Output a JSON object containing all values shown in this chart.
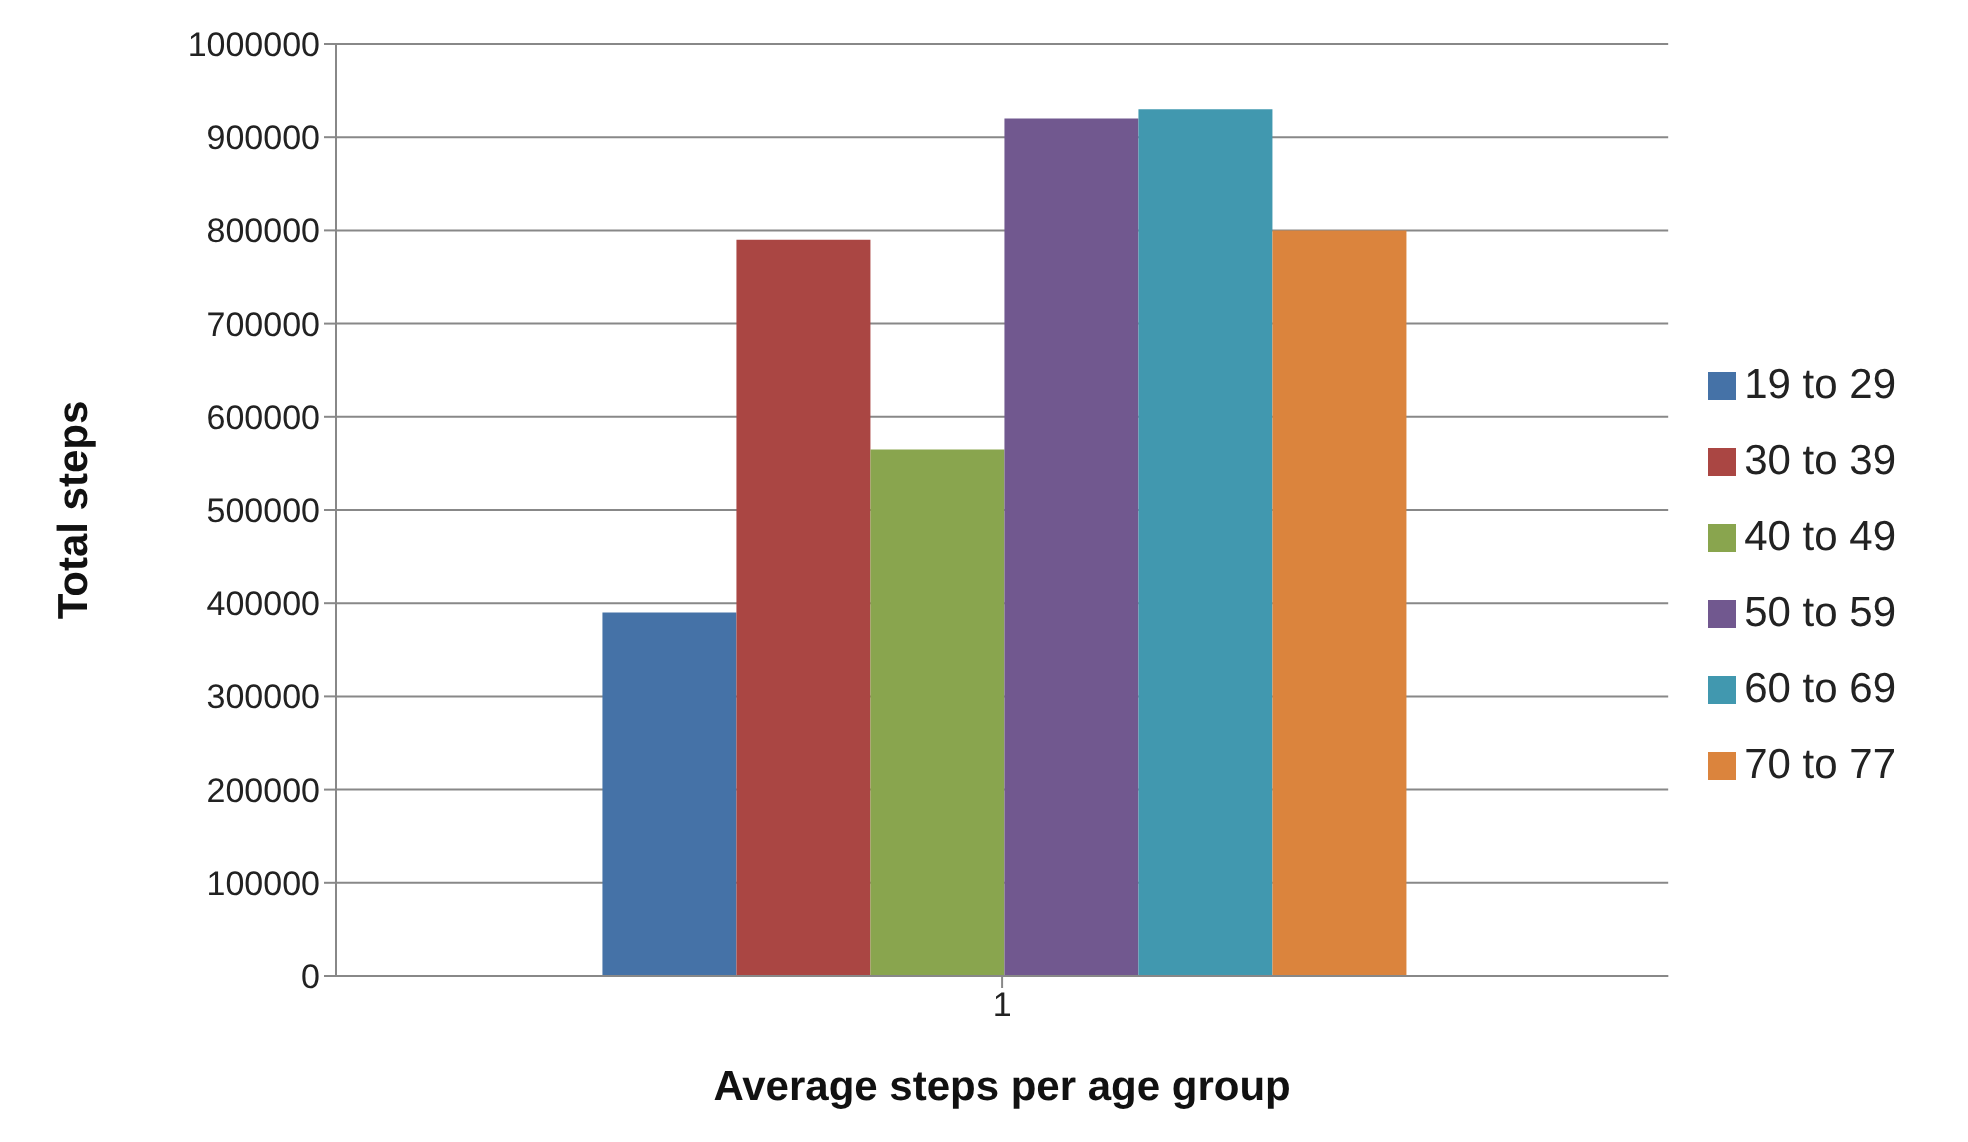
{
  "chart_data": {
    "type": "bar",
    "xlabel": "Average steps per age group",
    "ylabel": "Total steps",
    "categories": [
      "1"
    ],
    "series": [
      {
        "name": "19 to 29",
        "color": "#4572a7",
        "values": [
          390000
        ]
      },
      {
        "name": "30 to 39",
        "color": "#aa4643",
        "values": [
          790000
        ]
      },
      {
        "name": "40 to 49",
        "color": "#89a54e",
        "values": [
          565000
        ]
      },
      {
        "name": "50 to 59",
        "color": "#71588f",
        "values": [
          920000
        ]
      },
      {
        "name": "60 to 69",
        "color": "#4198af",
        "values": [
          930000
        ]
      },
      {
        "name": "70 to 77",
        "color": "#db843d",
        "values": [
          800000
        ]
      }
    ],
    "ylim": [
      0,
      1000000
    ],
    "yticks": [
      0,
      100000,
      200000,
      300000,
      400000,
      500000,
      600000,
      700000,
      800000,
      900000,
      1000000
    ],
    "grid": "y",
    "legend": "right"
  }
}
